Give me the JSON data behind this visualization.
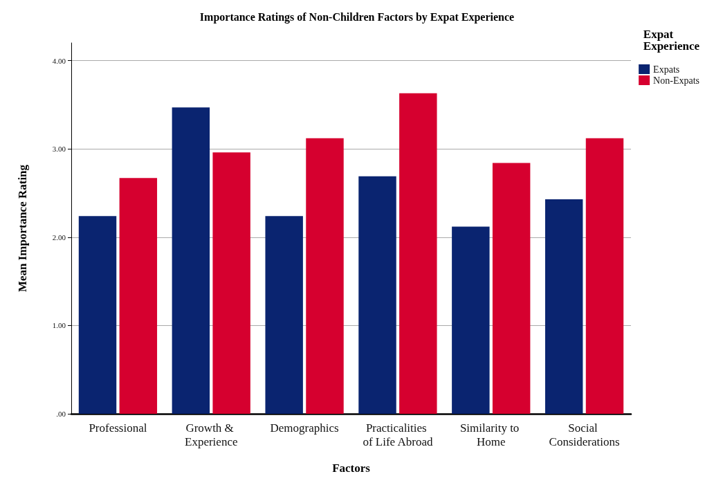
{
  "chart_data": {
    "type": "bar",
    "title": "Importance Ratings of Non-Children Factors by Expat Experience",
    "xlabel": "Factors",
    "ylabel": "Mean Importance Rating",
    "legend_title": "Expat Experience",
    "categories": [
      "Professional",
      "Growth & Experience",
      "Demographics",
      "Practicalities of Life Abroad",
      "Similarity to Home",
      "Social Considerations"
    ],
    "series": [
      {
        "name": "Expats",
        "color": "#0a2470",
        "values": [
          2.24,
          3.47,
          2.24,
          2.69,
          2.12,
          2.43
        ]
      },
      {
        "name": "Non-Expats",
        "color": "#d6002f",
        "values": [
          2.67,
          2.96,
          3.12,
          3.63,
          2.84,
          3.12
        ]
      }
    ],
    "ylim": [
      0,
      4.2
    ],
    "yticks": [
      {
        "value": 0,
        "label": ".00"
      },
      {
        "value": 1,
        "label": "1.00"
      },
      {
        "value": 2,
        "label": "2.00"
      },
      {
        "value": 3,
        "label": "3.00"
      },
      {
        "value": 4,
        "label": "4.00"
      }
    ],
    "grid": "y",
    "legend": "top right"
  }
}
